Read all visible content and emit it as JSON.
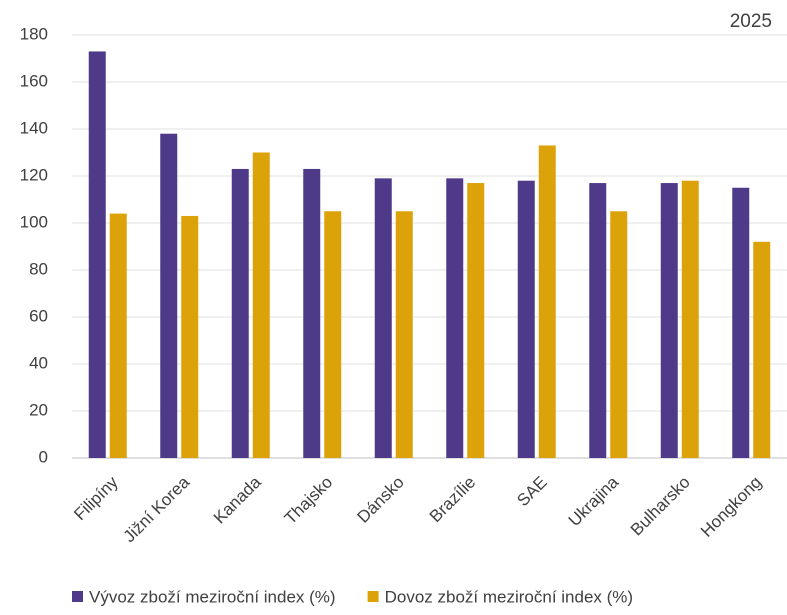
{
  "chart_data": {
    "type": "bar",
    "title": "2025",
    "categories": [
      "Filipíny",
      "Jižní Korea",
      "Kanada",
      "Thajsko",
      "Dánsko",
      "Brazílie",
      "SAE",
      "Ukrajina",
      "Bulharsko",
      "Hongkong"
    ],
    "series": [
      {
        "name": "Vývoz zboží meziroční index (%)",
        "color": "#4f3a8a",
        "values": [
          173,
          138,
          123,
          123,
          119,
          119,
          118,
          117,
          117,
          115
        ]
      },
      {
        "name": "Dovoz zboží meziroční index (%)",
        "color": "#dba20a",
        "values": [
          104,
          103,
          130,
          105,
          105,
          117,
          133,
          105,
          118,
          92
        ]
      }
    ],
    "ylim": [
      0,
      180
    ],
    "yticks": [
      0,
      20,
      40,
      60,
      80,
      100,
      120,
      140,
      160,
      180
    ],
    "grid": true,
    "legend": "bottom"
  }
}
